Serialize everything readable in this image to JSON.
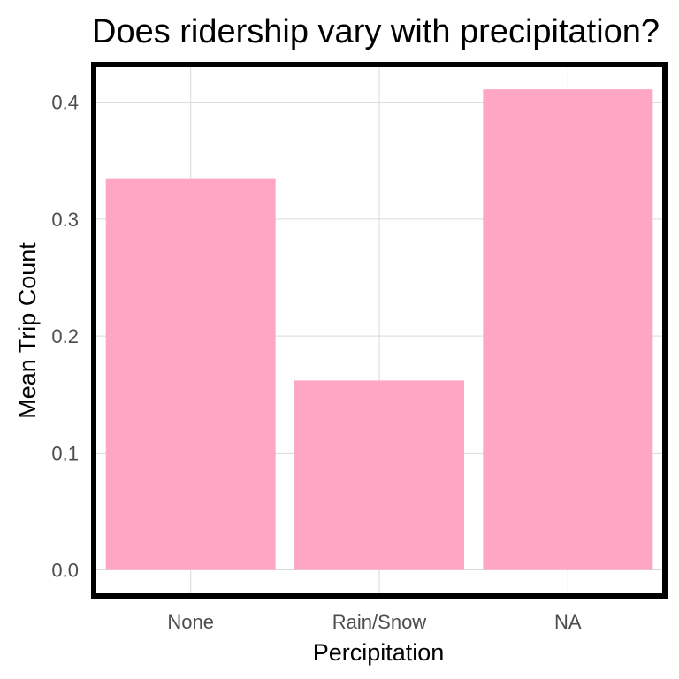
{
  "chart_data": {
    "type": "bar",
    "title": "Does ridership vary with precipitation?",
    "xlabel": "Percipitation",
    "ylabel": "Mean Trip Count",
    "categories": [
      "None",
      "Rain/Snow",
      "NA"
    ],
    "values": [
      0.335,
      0.162,
      0.411
    ],
    "ylim": [
      -0.02,
      0.43
    ],
    "yticks": [
      0.0,
      0.1,
      0.2,
      0.3,
      0.4
    ],
    "ytick_labels": [
      "0.0",
      "0.1",
      "0.2",
      "0.3",
      "0.4"
    ],
    "grid": true,
    "legend": "none",
    "colors": {
      "bar": "#ffa6c5",
      "grid": "#d9d9d9",
      "frame": "#000000",
      "tick_text": "#4d4d4d",
      "title_text": "#000000"
    }
  }
}
